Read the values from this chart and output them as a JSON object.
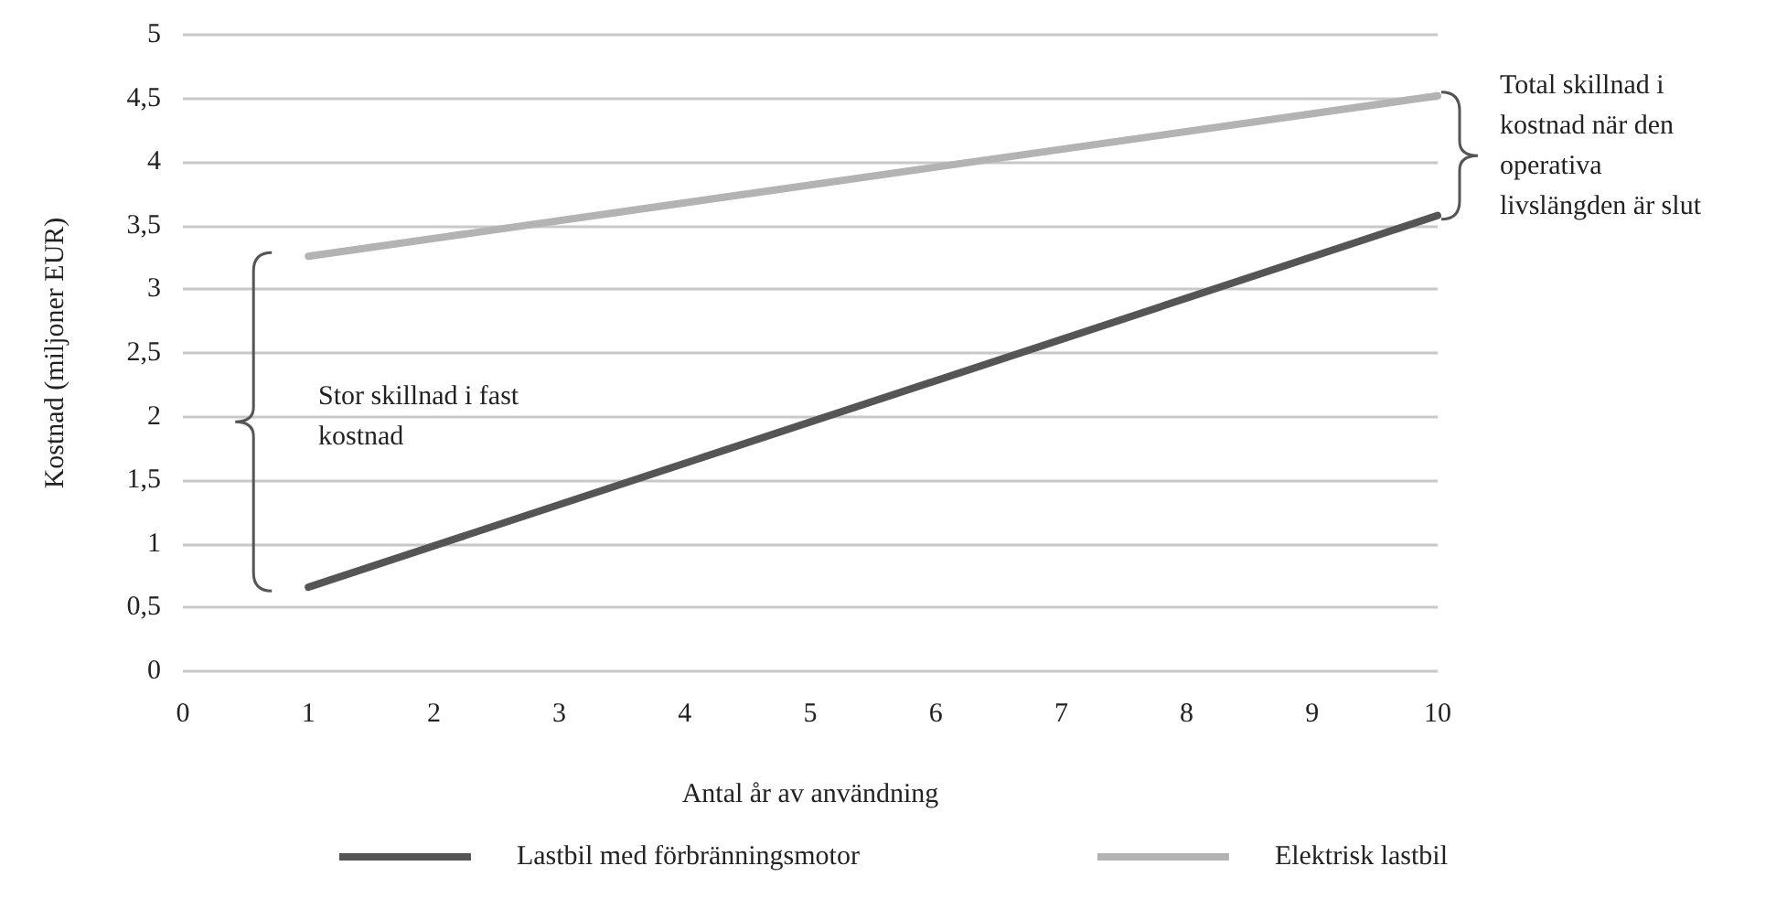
{
  "chart_data": {
    "type": "line",
    "xlabel": "Antal år av användning",
    "ylabel": "Kostnad (miljoner EUR)",
    "x": [
      1,
      10
    ],
    "series": [
      {
        "name": "Lastbil med förbränningsmotor",
        "color": "#555555",
        "values": [
          0.66,
          3.58
        ]
      },
      {
        "name": "Elektrisk lastbil",
        "color": "#b3b3b3",
        "values": [
          3.26,
          4.52
        ]
      }
    ],
    "xlim": [
      0,
      10
    ],
    "xticks": [
      0,
      1,
      2,
      3,
      4,
      5,
      6,
      7,
      8,
      9,
      10
    ],
    "ylim": [
      0,
      5
    ],
    "yticks": [
      0,
      {
        "value": 0.5,
        "label": "0,5"
      },
      1,
      {
        "value": 1.5,
        "label": "1,5"
      },
      2,
      {
        "value": 2.5,
        "label": "2,5"
      },
      3,
      {
        "value": 3.5,
        "label": "3,5"
      },
      4,
      {
        "value": 4.5,
        "label": "4,5"
      },
      5
    ],
    "annotations": [
      "Stor skillnad i fast\nkostnad",
      "Total skillnad i\nkostnad när den\noperativa\nlivslängden är slut"
    ],
    "grid": "y",
    "legend": "bottom",
    "marker": "none",
    "line_style": "solid"
  }
}
